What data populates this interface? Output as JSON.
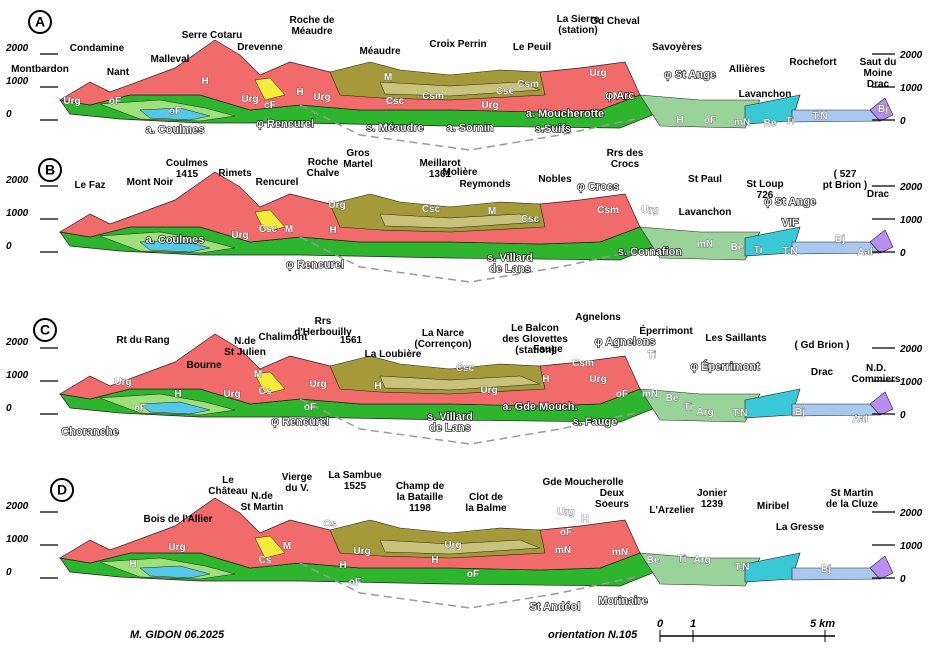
{
  "sections": [
    {
      "letter": "A",
      "elevation_ticks": [
        2000,
        1000,
        0
      ],
      "places": [
        "Montbardon",
        "Condamine",
        "Nant",
        "Malleval",
        "Serre Cotaru",
        "Roche de\nMéaudre",
        "Drevenne",
        "Méaudre",
        "Croix Perrin",
        "Le Peuil",
        "La Sierre\n(station)",
        "Gd Cheval",
        "Savoyères",
        "Allières",
        "Rochefort",
        "Saut du\nMoine\nDrac",
        "Lavanchon"
      ],
      "formations": [
        "Urg",
        "oF",
        "H",
        "oF",
        "Urg",
        "cF",
        "H",
        "Urg",
        "M",
        "Csc",
        "Csm",
        "Urg",
        "Cse",
        "Csm",
        "Urg",
        "mN",
        "H",
        "oF",
        "mN",
        "Be",
        "Ti",
        "T.N",
        "Bj"
      ],
      "structures": [
        "a. Coulmes",
        "φ Rencurel",
        "s. Méaudre",
        "a. Sornin",
        "a. Moucherotte",
        "s.Suifs",
        "φ St Ange",
        "φ Arc"
      ]
    },
    {
      "letter": "B",
      "elevation_ticks": [
        2000,
        1000,
        0
      ],
      "places": [
        "Le Faz",
        "Mont Noir",
        "Coulmes\n1415",
        "Rimets",
        "Rencurel",
        "Roche\nChalve",
        "Gros\nMartel",
        "Meillarot\n1361",
        "Molière",
        "Reymonds",
        "Nobles",
        "Rrs des\nCrocs",
        "St Paul",
        "St Loup\n726",
        "( 527\npt Brion )",
        "Drac",
        "Lavanchon"
      ],
      "formations": [
        "Urg",
        "Csc",
        "M",
        "Urg",
        "H",
        "Csc",
        "M",
        "Csc",
        "Csm",
        "Urg",
        "mN",
        "Be",
        "Ti",
        "T.N",
        "Bj",
        "Aal"
      ],
      "structures": [
        "a. Coulmes",
        "φ Rencurel",
        "s. Villard\nde Lans",
        "s. Cornafion",
        "φ Crocs",
        "φ St Ange",
        "VIF"
      ]
    },
    {
      "letter": "C",
      "elevation_ticks": [
        2000,
        1000,
        0
      ],
      "places": [
        "Rt du Rang",
        "Bourne",
        "N.de\nSt Julien",
        "Chalimont",
        "Rrs\nd'Herbouilly",
        "1561",
        "La Loubière",
        "La Narce\n(Corrençon)",
        "Le Balcon\ndes Glovettes\n(station)",
        "Fauge",
        "Agnelons",
        "Éperrimont",
        "Les Saillants",
        "( Gd Brion )",
        "Drac",
        "N.D.\nCommiers"
      ],
      "formations": [
        "Urg",
        "H",
        "oF",
        "Urg",
        "M",
        "Cs",
        "Urg",
        "oF",
        "H",
        "Csc",
        "Urg",
        "H",
        "Csm",
        "Urg",
        "oF",
        "mN",
        "Be",
        "Ti",
        "Arg",
        "T.N",
        "Bj",
        "Aal",
        "Ti"
      ],
      "structures": [
        "Choranche",
        "φ Rencurel",
        "s. Villard\nde Lans",
        "a. Gde Mouch.",
        "s. Fauge",
        "φ Agnelons",
        "φ Éperrimont"
      ]
    },
    {
      "letter": "D",
      "elevation_ticks": [
        2000,
        1000,
        0
      ],
      "places": [
        "Le\nChâteau",
        "N.de\nSt Martin",
        "Vierge\ndu V.",
        "La Sambue\n1525",
        "Bois de l'Allier",
        "Champ de\nla Bataille\n1198",
        "Clot de\nla Balme",
        "Gde Moucherolle",
        "Deux\nSoeurs",
        "L'Arzelier",
        "Jonier\n1239",
        "Miribel",
        "La Gresse",
        "St Martin\nde la Cluze"
      ],
      "formations": [
        "Urg",
        "H",
        "Cs",
        "M",
        "Cs",
        "Urg",
        "H",
        "oF",
        "Urg",
        "H",
        "oF",
        "Urg",
        "oF",
        "H",
        "mN",
        "mN",
        "Be",
        "Ti",
        "Arg",
        "T.N",
        "Bj"
      ],
      "structures": [
        "St Andéol",
        "Morinaire"
      ]
    }
  ],
  "footer": {
    "author": "M. GIDON 06.2025",
    "orientation": "orientation N.105",
    "scale": [
      "0",
      "1",
      "5 km"
    ]
  }
}
